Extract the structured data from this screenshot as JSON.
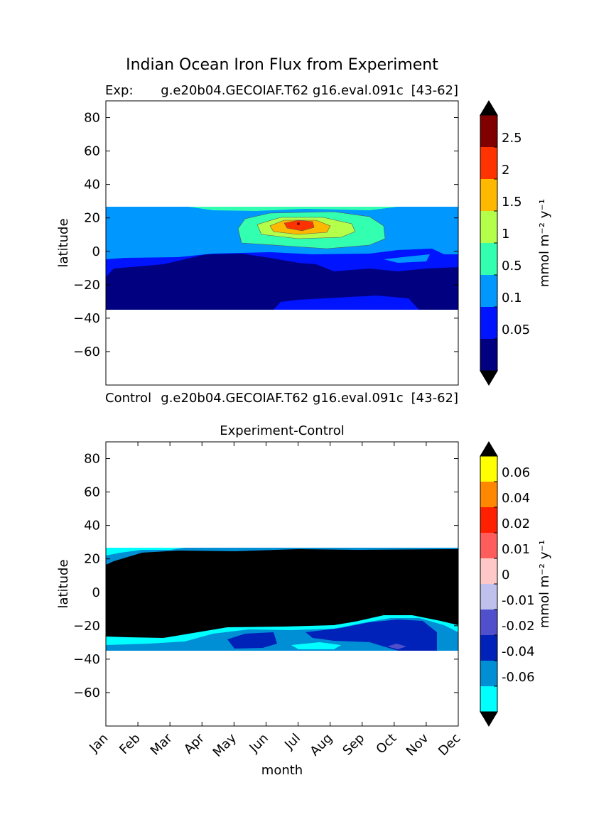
{
  "title": "Indian Ocean Iron Flux from Experiment",
  "chart_data": [
    {
      "type": "heatmap",
      "subtitle_left": "Exp:",
      "subtitle_center": "g.e20b04.GECOIAF.T62 g16.eval.091c",
      "subtitle_right": "[43-62]",
      "bottom_label_left": "Control",
      "bottom_label_center": "g.e20b04.GECOIAF.T62 g16.eval.091c",
      "bottom_label_right": "[43-62]",
      "xlabel": "",
      "ylabel": "latitude",
      "xlim": [
        0,
        11
      ],
      "ylim": [
        -80,
        90
      ],
      "yticks": [
        80,
        60,
        40,
        20,
        0,
        -20,
        -40,
        -60
      ],
      "ytick_labels": [
        "80",
        "60",
        "40",
        "20",
        "0",
        "−20",
        "−40",
        "−60"
      ],
      "data_lat_range": [
        -34,
        27
      ],
      "colorbar": {
        "label": "mmol m⁻² y⁻¹",
        "tick_labels": [
          "2.5",
          "2",
          "1.5",
          "1",
          "0.5",
          "0.1",
          "0.05"
        ],
        "colors": [
          "#000080",
          "#0014ff",
          "#0097ff",
          "#33ffb0",
          "#b3ff4a",
          "#ffb800",
          "#ff3300",
          "#800000"
        ],
        "extend": "both",
        "extend_colors": [
          "#000000",
          "#000000"
        ]
      },
      "regions": [
        {
          "level": "0.1-0.5",
          "color": "#0097ff"
        },
        {
          "level": "0.5-1",
          "color": "#33ffb0"
        },
        {
          "level": "1-1.5",
          "color": "#b3ff4a"
        },
        {
          "level": "1.5-2",
          "color": "#ffb800"
        },
        {
          "level": "2-2.5",
          "color": "#ff3300"
        },
        {
          "level": "0.05-0.1",
          "color": "#0014ff"
        },
        {
          "level": "<0.05",
          "color": "#000080"
        }
      ]
    },
    {
      "type": "heatmap",
      "title": "Experiment-Control",
      "xlabel": "month",
      "ylabel": "latitude",
      "xlim": [
        0,
        11
      ],
      "ylim": [
        -80,
        90
      ],
      "x": [
        "Jan",
        "Feb",
        "Mar",
        "Apr",
        "May",
        "Jun",
        "Jul",
        "Aug",
        "Sep",
        "Oct",
        "Nov",
        "Dec"
      ],
      "yticks": [
        80,
        60,
        40,
        20,
        0,
        -20,
        -40,
        -60
      ],
      "ytick_labels": [
        "80",
        "60",
        "40",
        "20",
        "0",
        "−20",
        "−40",
        "−60"
      ],
      "data_lat_range": [
        -34,
        27
      ],
      "colorbar": {
        "label": "mmol m⁻² y⁻¹",
        "tick_labels": [
          "0.06",
          "0.04",
          "0.02",
          "0.01",
          "0",
          "-0.01",
          "-0.02",
          "-0.04",
          "-0.06"
        ],
        "colors": [
          "#00ffff",
          "#008fd5",
          "#0022b8",
          "#5050cc",
          "#c0c0ec",
          "#ffc8c8",
          "#ff5c5c",
          "#ff2000",
          "#ff8800",
          "#ffff00"
        ],
        "extend": "both",
        "extend_colors": [
          "#000000",
          "#000000"
        ]
      }
    }
  ]
}
